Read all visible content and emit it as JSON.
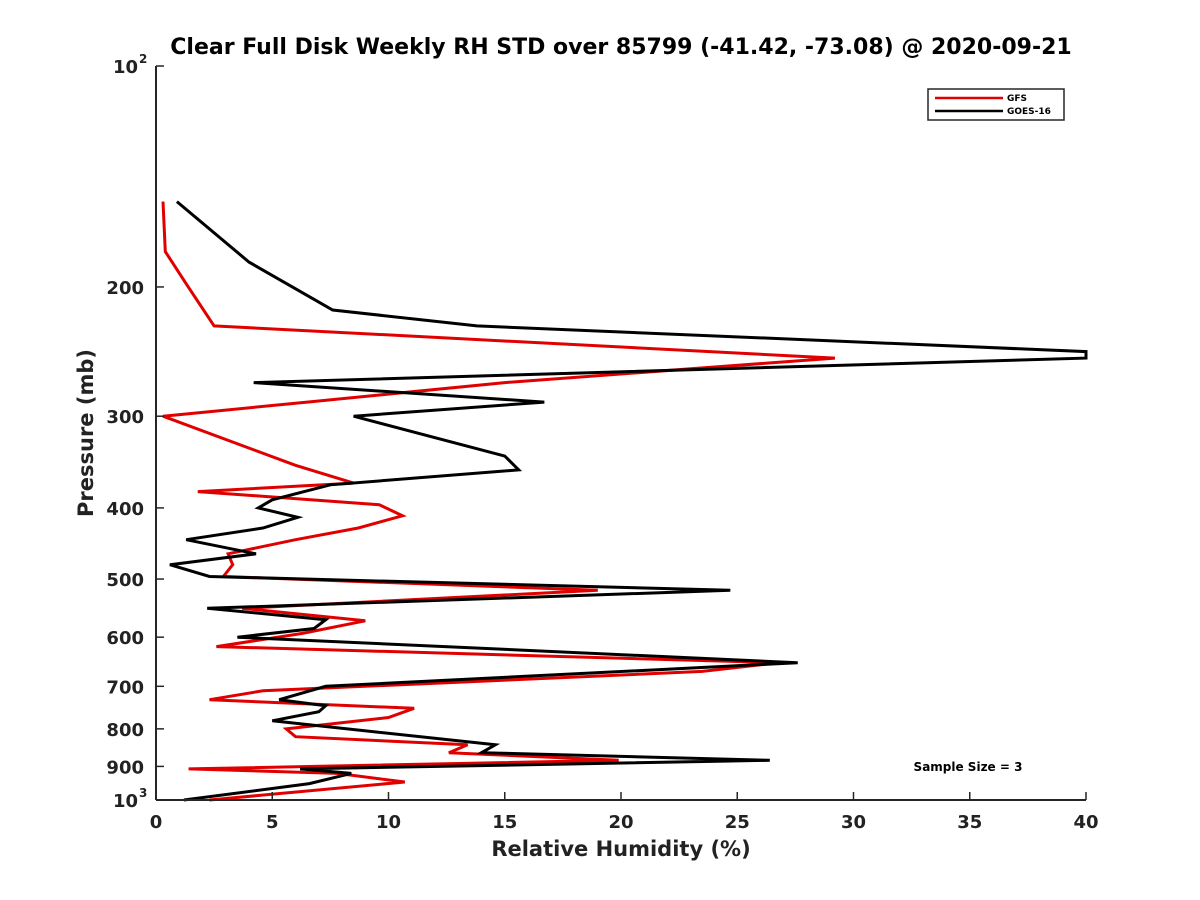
{
  "chart_data": {
    "type": "line",
    "title": "Clear Full Disk Weekly RH STD over 85799 (-41.42, -73.08) @ 2020-09-21",
    "xlabel": "Relative Humidity (%)",
    "ylabel": "Pressure (mb)",
    "xlim": [
      0,
      40
    ],
    "ylim": [
      100,
      1000
    ],
    "y_scale": "log",
    "y_reversed": true,
    "x_ticks": [
      "0",
      "5",
      "10",
      "15",
      "20",
      "25",
      "30",
      "35",
      "40"
    ],
    "y_ticks": [
      {
        "value": 100,
        "label": "10",
        "exp": "2"
      },
      {
        "value": 200,
        "label": "200"
      },
      {
        "value": 300,
        "label": "300"
      },
      {
        "value": 400,
        "label": "400"
      },
      {
        "value": 500,
        "label": "500"
      },
      {
        "value": 600,
        "label": "600"
      },
      {
        "value": 700,
        "label": "700"
      },
      {
        "value": 800,
        "label": "800"
      },
      {
        "value": 900,
        "label": "900"
      },
      {
        "value": 1000,
        "label": "10",
        "exp": "3"
      }
    ],
    "grid": false,
    "legend_position": "top-right",
    "annotation": "Sample Size = 3",
    "series": [
      {
        "name": "GFS",
        "color": "#e00000",
        "points": [
          [
            0.3,
            153
          ],
          [
            0.4,
            179
          ],
          [
            1.3,
            198
          ],
          [
            2.5,
            226
          ],
          [
            29.2,
            250
          ],
          [
            15.0,
            270
          ],
          [
            6.5,
            287
          ],
          [
            0.3,
            300
          ],
          [
            6.0,
            350
          ],
          [
            8.5,
            370
          ],
          [
            1.8,
            380
          ],
          [
            9.6,
            396
          ],
          [
            10.6,
            410
          ],
          [
            8.7,
            426
          ],
          [
            6.0,
            442
          ],
          [
            3.1,
            462
          ],
          [
            3.3,
            478
          ],
          [
            2.9,
            496
          ],
          [
            19.0,
            518
          ],
          [
            3.7,
            548
          ],
          [
            9.0,
            570
          ],
          [
            6.3,
            593
          ],
          [
            2.6,
            618
          ],
          [
            26.8,
            650
          ],
          [
            23.5,
            668
          ],
          [
            4.6,
            710
          ],
          [
            2.3,
            730
          ],
          [
            11.1,
            750
          ],
          [
            10.0,
            772
          ],
          [
            5.6,
            800
          ],
          [
            6.0,
            820
          ],
          [
            13.4,
            841
          ],
          [
            12.6,
            862
          ],
          [
            19.9,
            883
          ],
          [
            1.4,
            907
          ],
          [
            7.8,
            920
          ],
          [
            10.7,
            945
          ],
          [
            2.3,
            1000
          ]
        ]
      },
      {
        "name": "GOES-16",
        "color": "#000000",
        "points": [
          [
            0.9,
            153
          ],
          [
            4.0,
            185
          ],
          [
            7.6,
            215
          ],
          [
            13.8,
            226
          ],
          [
            40.0,
            245
          ],
          [
            40.0,
            250
          ],
          [
            4.2,
            270
          ],
          [
            16.7,
            287
          ],
          [
            8.5,
            300
          ],
          [
            15.0,
            340
          ],
          [
            15.6,
            355
          ],
          [
            7.5,
            372
          ],
          [
            5.0,
            390
          ],
          [
            4.4,
            400
          ],
          [
            6.1,
            412
          ],
          [
            4.6,
            426
          ],
          [
            1.3,
            442
          ],
          [
            4.3,
            462
          ],
          [
            0.6,
            478
          ],
          [
            2.3,
            496
          ],
          [
            24.7,
            518
          ],
          [
            2.2,
            548
          ],
          [
            7.3,
            568
          ],
          [
            6.8,
            584
          ],
          [
            3.5,
            600
          ],
          [
            27.6,
            650
          ],
          [
            7.3,
            700
          ],
          [
            5.3,
            730
          ],
          [
            7.3,
            744
          ],
          [
            7.0,
            758
          ],
          [
            5.0,
            780
          ],
          [
            14.6,
            841
          ],
          [
            14.0,
            862
          ],
          [
            26.4,
            883
          ],
          [
            6.2,
            907
          ],
          [
            8.4,
            920
          ],
          [
            6.6,
            950
          ],
          [
            1.2,
            1000
          ]
        ]
      }
    ]
  }
}
